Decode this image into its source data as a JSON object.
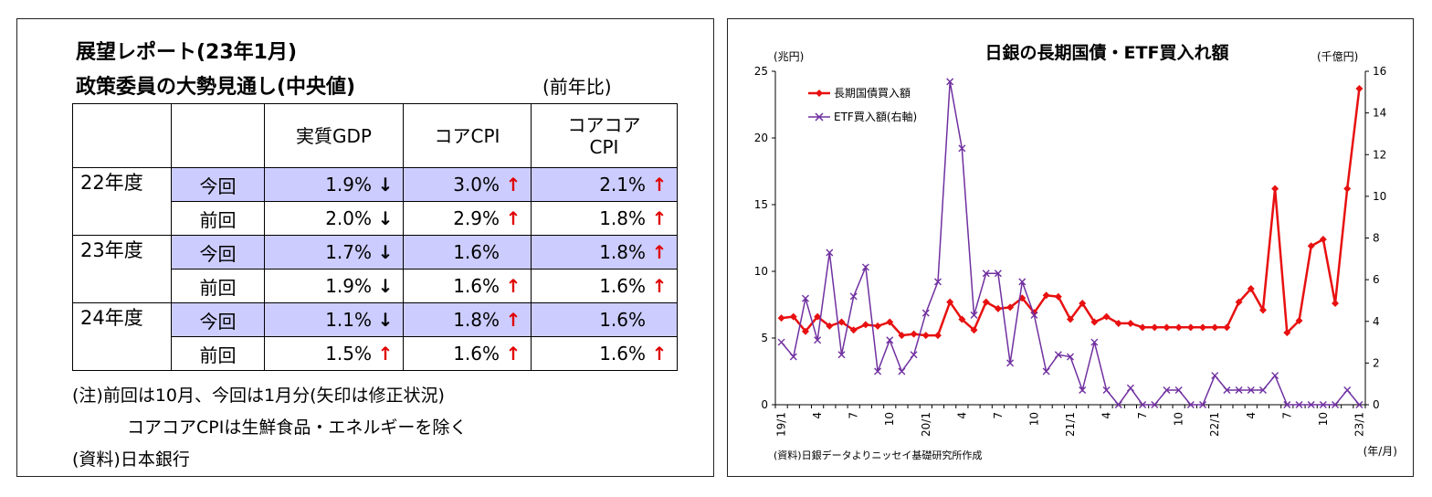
{
  "left": {
    "title1": "展望レポート(23年1月)",
    "title2": "政策委員の大勢見通し(中央値)",
    "yoy": "(前年比)",
    "headers": [
      "実質GDP",
      "コアCPI",
      "コアコア\nCPI"
    ],
    "rows": [
      {
        "year": "22年度",
        "kind": "今回",
        "current": true,
        "cells": [
          {
            "v": "1.9%",
            "a": "down"
          },
          {
            "v": "3.0%",
            "a": "up"
          },
          {
            "v": "2.1%",
            "a": "up"
          }
        ]
      },
      {
        "year": "",
        "kind": "前回",
        "current": false,
        "cells": [
          {
            "v": "2.0%",
            "a": "down"
          },
          {
            "v": "2.9%",
            "a": "up"
          },
          {
            "v": "1.8%",
            "a": "up"
          }
        ]
      },
      {
        "year": "23年度",
        "kind": "今回",
        "current": true,
        "cells": [
          {
            "v": "1.7%",
            "a": "down"
          },
          {
            "v": "1.6%",
            "a": ""
          },
          {
            "v": "1.8%",
            "a": "up"
          }
        ]
      },
      {
        "year": "",
        "kind": "前回",
        "current": false,
        "cells": [
          {
            "v": "1.9%",
            "a": "down"
          },
          {
            "v": "1.6%",
            "a": "up"
          },
          {
            "v": "1.6%",
            "a": "up"
          }
        ]
      },
      {
        "year": "24年度",
        "kind": "今回",
        "current": true,
        "cells": [
          {
            "v": "1.1%",
            "a": "down"
          },
          {
            "v": "1.8%",
            "a": "up"
          },
          {
            "v": "1.6%",
            "a": ""
          }
        ]
      },
      {
        "year": "",
        "kind": "前回",
        "current": false,
        "cells": [
          {
            "v": "1.5%",
            "a": "up"
          },
          {
            "v": "1.6%",
            "a": "up"
          },
          {
            "v": "1.6%",
            "a": "up"
          }
        ]
      }
    ],
    "arrows": {
      "up": "↑",
      "down": "↓"
    },
    "note1": "(注)前回は10月、今回は1月分(矢印は修正状況)",
    "note2": "コアコアCPIは生鮮食品・エネルギーを除く",
    "source": "(資料)日本銀行",
    "colors": {
      "highlight": "#ccccff",
      "up_arrow": "#e00000",
      "down_arrow": "#000000"
    }
  },
  "chart_data": {
    "type": "line",
    "title": "日銀の長期国債・ETF買入れ額",
    "ylabel_left": "(兆円)",
    "ylabel_right": "(千億円)",
    "xlabel": "(年/月)",
    "source": "(資料)日銀データよりニッセイ基礎研究所作成",
    "x_tick_labels": [
      "19/1",
      "4",
      "7",
      "10",
      "20/1",
      "4",
      "7",
      "10",
      "21/1",
      "4",
      "7",
      "10",
      "22/1",
      "4",
      "7",
      "10",
      "23/1"
    ],
    "y_left_ticks": [
      "0",
      "5",
      "10",
      "15",
      "20",
      "25"
    ],
    "y_right_ticks": [
      "0",
      "2",
      "4",
      "6",
      "8",
      "10",
      "12",
      "14",
      "16"
    ],
    "ylim_left": [
      0,
      25
    ],
    "ylim_right": [
      0,
      16
    ],
    "grid": false,
    "legend_position": "top-left",
    "series": [
      {
        "name": "長期国債買入額",
        "axis": "left",
        "color": "#e81010",
        "marker": "diamond",
        "values": [
          6.5,
          6.6,
          5.5,
          6.6,
          5.9,
          6.2,
          5.6,
          6.0,
          5.9,
          6.2,
          5.2,
          5.3,
          5.2,
          5.2,
          7.7,
          6.4,
          5.6,
          7.7,
          7.2,
          7.3,
          8.0,
          6.9,
          8.2,
          8.1,
          6.4,
          7.6,
          6.2,
          6.6,
          6.1,
          6.1,
          5.8,
          5.8,
          5.8,
          5.8,
          5.8,
          5.8,
          5.8,
          5.8,
          7.7,
          8.7,
          7.1,
          16.2,
          5.4,
          6.3,
          11.9,
          12.4,
          7.6,
          16.2,
          23.7
        ]
      },
      {
        "name": "ETF買入額(右軸)",
        "axis": "right",
        "color": "#7030a0",
        "marker": "x",
        "values": [
          3.0,
          2.3,
          5.1,
          3.1,
          7.3,
          2.4,
          5.2,
          6.6,
          1.6,
          3.1,
          1.6,
          2.4,
          4.4,
          5.9,
          15.5,
          12.3,
          4.3,
          6.3,
          6.3,
          2.0,
          5.9,
          4.3,
          1.6,
          2.4,
          2.3,
          0.7,
          3.0,
          0.7,
          0.0,
          0.8,
          0.0,
          0.0,
          0.7,
          0.7,
          0.0,
          0.0,
          1.4,
          0.7,
          0.7,
          0.7,
          0.7,
          1.4,
          0.0,
          0.0,
          0.0,
          0.0,
          0.0,
          0.7,
          0.0
        ]
      }
    ]
  }
}
